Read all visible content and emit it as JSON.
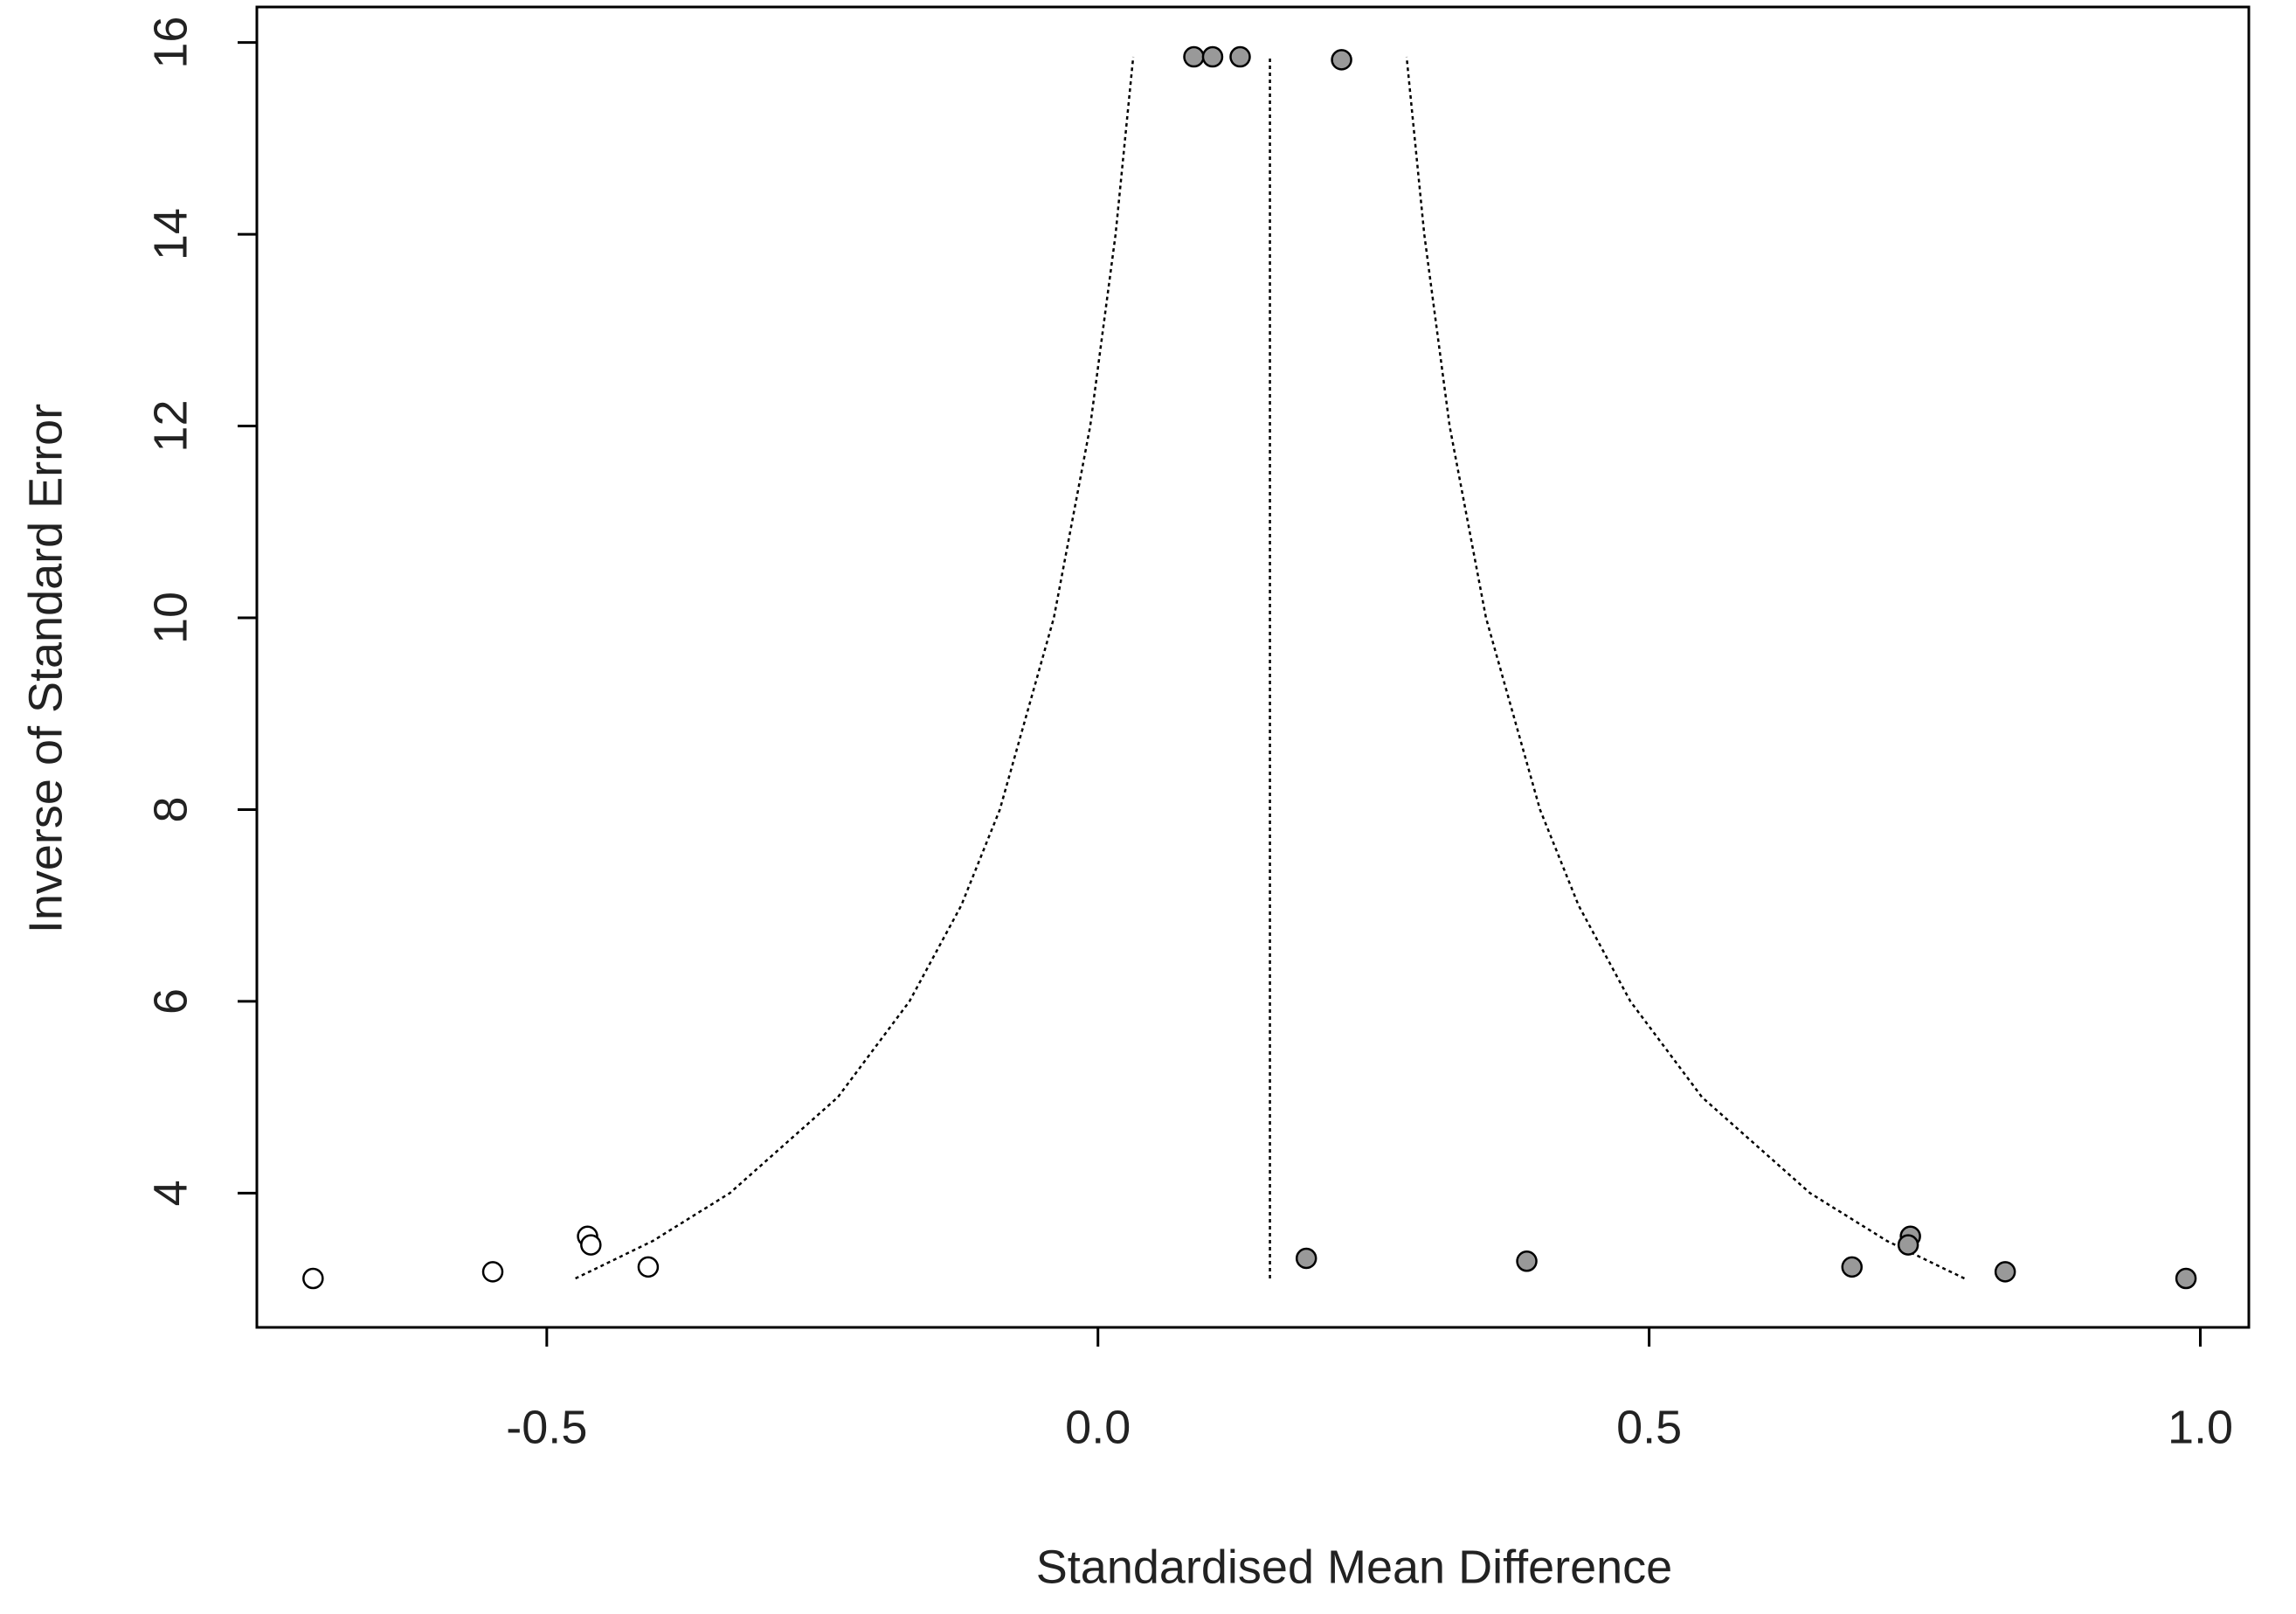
{
  "chart_data": {
    "type": "scatter",
    "x_label": "Standardised Mean Difference",
    "y_label": "Inverse of Standard Error",
    "xlim": [
      -0.763,
      1.044
    ],
    "ylim": [
      2.6,
      16.37
    ],
    "xticks": [
      -0.5,
      {
        "value": 0,
        "label": "0.0"
      },
      0.5,
      {
        "value": 1,
        "label": "1.0"
      }
    ],
    "yticks": [
      4,
      6,
      8,
      10,
      12,
      14,
      16
    ],
    "series": [
      {
        "color": "#ffffff",
        "x": [
          -0.712,
          -0.549,
          -0.463,
          -0.46,
          -0.408
        ],
        "values": [
          3.11,
          3.18,
          3.55,
          3.46,
          3.23
        ]
      },
      {
        "color": "#999999",
        "x": [
          0.087,
          0.104,
          0.129,
          0.221,
          0.189,
          0.389,
          0.684,
          0.737,
          0.735,
          0.823,
          0.987
        ],
        "values": [
          15.85,
          15.85,
          15.85,
          15.82,
          3.32,
          3.29,
          3.23,
          3.55,
          3.46,
          3.18,
          3.11
        ]
      }
    ],
    "lines": [
      {
        "x": [
          -0.474,
          -0.404,
          -0.334,
          -0.236,
          -0.171,
          -0.124,
          -0.089,
          -0.04,
          -0.007,
          0.016,
          0.032
        ],
        "values": [
          3.11,
          3.5,
          4,
          5,
          6,
          7,
          8,
          10,
          12,
          14,
          15.85
        ]
      },
      {
        "x": [
          0.786,
          0.716,
          0.646,
          0.548,
          0.483,
          0.436,
          0.401,
          0.352,
          0.319,
          0.296,
          0.28
        ],
        "values": [
          3.11,
          3.5,
          4,
          5,
          6,
          7,
          8,
          10,
          12,
          14,
          15.85
        ]
      },
      {
        "x": [
          0.156,
          0.156
        ],
        "values": [
          3.11,
          15.85
        ]
      }
    ]
  }
}
